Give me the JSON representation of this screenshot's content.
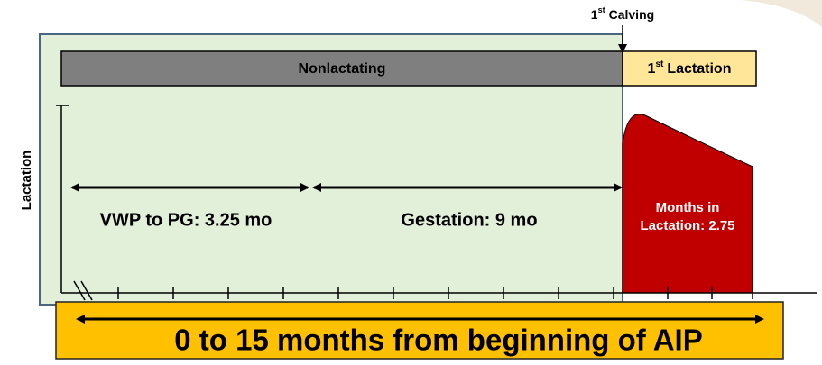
{
  "calving": {
    "ordinal": "1",
    "suffix": "st",
    "text": "Calving"
  },
  "bars": {
    "nonlactating": "Nonlactating",
    "lactation": {
      "ordinal": "1",
      "suffix": "st",
      "text": "Lactation"
    }
  },
  "y_axis_label": "Lactation",
  "segments": {
    "vwp": "VWP to PG: 3.25 mo",
    "gestation": "Gestation: 9 mo",
    "lactation_lines": [
      "Months in",
      "Lactation: 2.75"
    ]
  },
  "footer": "0 to 15 months from beginning of AIP"
}
